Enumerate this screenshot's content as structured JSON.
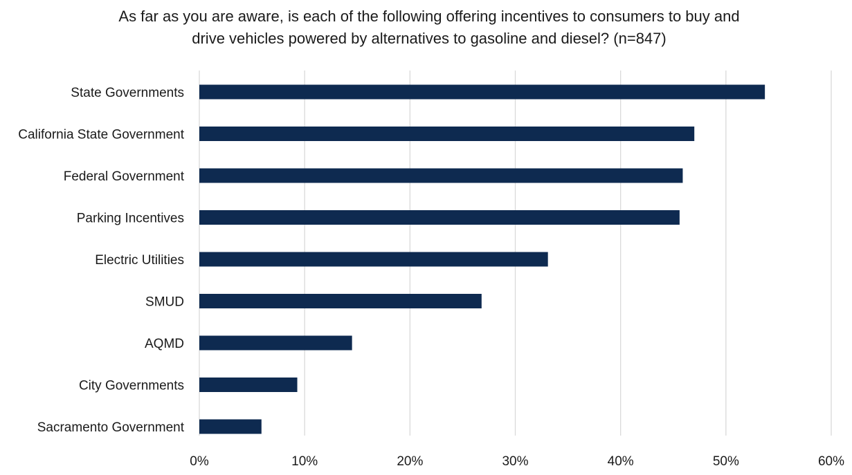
{
  "chart_data": {
    "type": "bar",
    "orientation": "horizontal",
    "title_lines": [
      "As far as you are aware, is each of the following offering incentives to consumers to buy and",
      "drive vehicles powered by alternatives to gasoline and diesel? (n=847)"
    ],
    "xlabel": "",
    "ylabel": "",
    "categories": [
      "State Governments",
      "California State Government",
      "Federal Government",
      "Parking Incentives",
      "Electric Utilities",
      "SMUD",
      "AQMD",
      "City Governments",
      "Sacramento Government"
    ],
    "values": [
      53.7,
      47.0,
      45.9,
      45.6,
      33.1,
      26.8,
      14.5,
      9.3,
      5.9
    ],
    "xlim": [
      0,
      60
    ],
    "x_ticks": [
      0,
      10,
      20,
      30,
      40,
      50,
      60
    ],
    "x_tick_labels": [
      "0%",
      "10%",
      "20%",
      "30%",
      "40%",
      "50%",
      "60%"
    ],
    "grid": "vertical",
    "legend": "none",
    "colors": {
      "bar": "#0e2a50",
      "grid": "#d9d9d9",
      "text": "#1a1a1a"
    }
  }
}
